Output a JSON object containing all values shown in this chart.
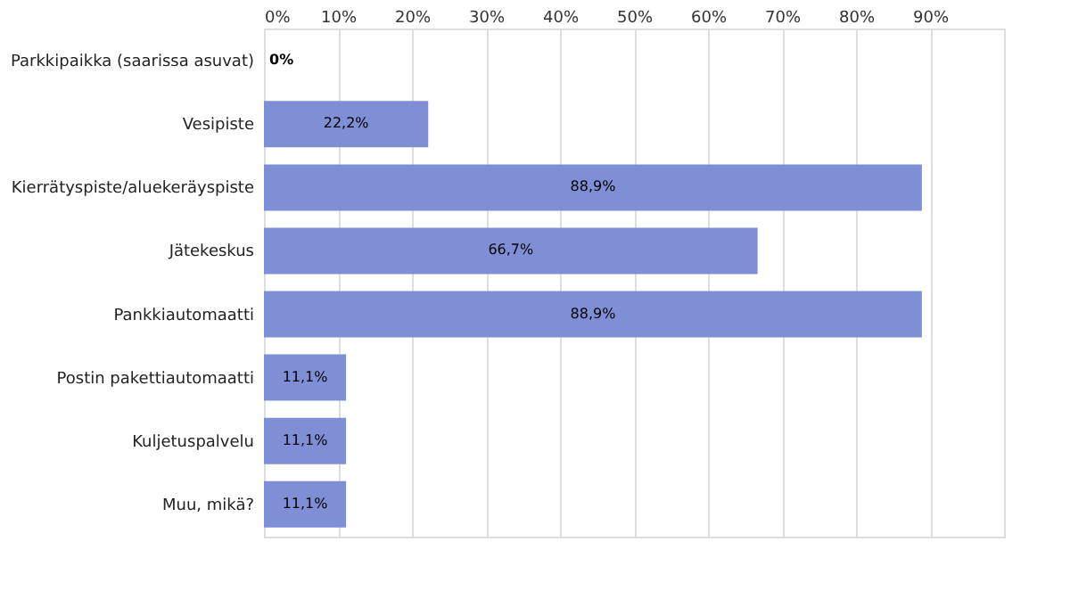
{
  "chart_data": {
    "type": "bar",
    "orientation": "horizontal",
    "categories": [
      "Parkkipaikka (saarissa asuvat)",
      "Vesipiste",
      "Kierrätyspiste/aluekeräyspiste",
      "Jätekeskus",
      "Pankkiautomaatti",
      "Postin pakettiautomaatti",
      "Kuljetuspalvelu",
      "Muu, mikä?"
    ],
    "values": [
      0,
      22.2,
      88.9,
      66.7,
      88.9,
      11.1,
      11.1,
      11.1
    ],
    "value_labels": [
      "0%",
      "22,2%",
      "88,9%",
      "66,7%",
      "88,9%",
      "11,1%",
      "11,1%",
      "11,1%"
    ],
    "color": "#7f8fd6",
    "xlim": [
      0,
      100
    ],
    "xticks": [
      {
        "value": 0,
        "label": "0%"
      },
      {
        "value": 10,
        "label": "10%"
      },
      {
        "value": 20,
        "label": "20%"
      },
      {
        "value": 30,
        "label": "30%"
      },
      {
        "value": 40,
        "label": "40%"
      },
      {
        "value": 50,
        "label": "50%"
      },
      {
        "value": 60,
        "label": "60%"
      },
      {
        "value": 70,
        "label": "70%"
      },
      {
        "value": 80,
        "label": "80%"
      },
      {
        "value": 90,
        "label": "90%"
      }
    ],
    "grid": "x"
  }
}
